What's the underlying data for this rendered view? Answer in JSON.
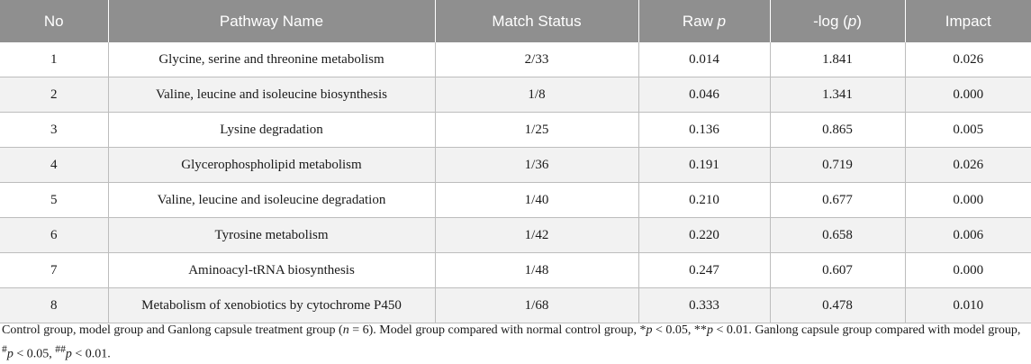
{
  "table": {
    "headers": [
      "No",
      "Pathway Name",
      "Match Status",
      "Raw",
      "-log (",
      "Impact"
    ],
    "header_italic": {
      "raw_p": "p",
      "log_p": "p",
      "log_close": ")"
    },
    "rows": [
      [
        "1",
        "Glycine, serine and threonine metabolism",
        "2/33",
        "0.014",
        "1.841",
        "0.026"
      ],
      [
        "2",
        "Valine, leucine and isoleucine biosynthesis",
        "1/8",
        "0.046",
        "1.341",
        "0.000"
      ],
      [
        "3",
        "Lysine degradation",
        "1/25",
        "0.136",
        "0.865",
        "0.005"
      ],
      [
        "4",
        "Glycerophospholipid metabolism",
        "1/36",
        "0.191",
        "0.719",
        "0.026"
      ],
      [
        "5",
        "Valine, leucine and isoleucine degradation",
        "1/40",
        "0.210",
        "0.677",
        "0.000"
      ],
      [
        "6",
        "Tyrosine metabolism",
        "1/42",
        "0.220",
        "0.658",
        "0.006"
      ],
      [
        "7",
        "Aminoacyl-tRNA biosynthesis",
        "1/48",
        "0.247",
        "0.607",
        "0.000"
      ],
      [
        "8",
        "Metabolism of xenobiotics by cytochrome P450",
        "1/68",
        "0.333",
        "0.478",
        "0.010"
      ]
    ]
  },
  "footnote": {
    "part1": "Control group, model group and Ganlong capsule treatment group (",
    "n": "n",
    "part2": " = 6). Model group compared with normal control group, *",
    "p1": "p",
    "part3": " < 0.05, **",
    "p2": "p",
    "part4": " < 0.01. Ganlong capsule group compared with model group, ",
    "hash1": "#",
    "p3": "p",
    "part5": " < 0.05, ",
    "hash2": "##",
    "p4": "p",
    "part6": " < 0.01."
  }
}
